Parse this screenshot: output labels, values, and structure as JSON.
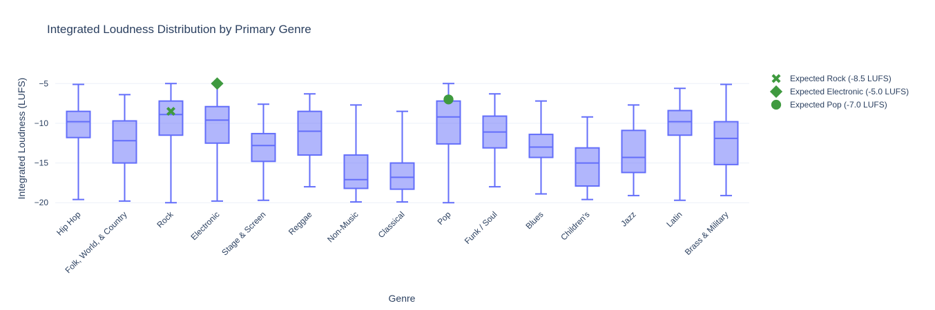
{
  "chart_data": {
    "type": "box",
    "title": "Integrated Loudness Distribution by Primary Genre",
    "xlabel": "Genre",
    "ylabel": "Integrated Loudness (LUFS)",
    "ylim": [
      -20.5,
      -3.5
    ],
    "yticks": [
      -5,
      -10,
      -15,
      -20
    ],
    "grid": true,
    "legend_position": "top-right",
    "box_color": "#636efa",
    "box_fill": "rgba(99,110,250,0.5)",
    "marker_color": "#3f9a3f",
    "categories": [
      "Hip Hop",
      "Folk, World, & Country",
      "Rock",
      "Electronic",
      "Stage & Screen",
      "Reggae",
      "Non-Music",
      "Classical",
      "Pop",
      "Funk / Soul",
      "Blues",
      "Children's",
      "Jazz",
      "Latin",
      "Brass & Military"
    ],
    "boxes": [
      {
        "min": -19.6,
        "q1": -11.8,
        "median": -9.8,
        "q3": -8.5,
        "max": -5.1
      },
      {
        "min": -19.8,
        "q1": -15.0,
        "median": -12.2,
        "q3": -9.7,
        "max": -6.4
      },
      {
        "min": -20.0,
        "q1": -11.5,
        "median": -8.9,
        "q3": -7.2,
        "max": -5.0
      },
      {
        "min": -19.8,
        "q1": -12.5,
        "median": -9.6,
        "q3": -7.9,
        "max": -5.0
      },
      {
        "min": -19.7,
        "q1": -14.8,
        "median": -12.8,
        "q3": -11.3,
        "max": -7.6
      },
      {
        "min": -18.0,
        "q1": -14.0,
        "median": -11.0,
        "q3": -8.5,
        "max": -6.3
      },
      {
        "min": -19.9,
        "q1": -18.2,
        "median": -17.1,
        "q3": -14.0,
        "max": -7.7
      },
      {
        "min": -19.9,
        "q1": -18.3,
        "median": -16.8,
        "q3": -15.0,
        "max": -8.5
      },
      {
        "min": -20.0,
        "q1": -12.6,
        "median": -9.2,
        "q3": -7.2,
        "max": -5.0
      },
      {
        "min": -18.0,
        "q1": -13.1,
        "median": -11.1,
        "q3": -9.1,
        "max": -6.3
      },
      {
        "min": -18.9,
        "q1": -14.3,
        "median": -13.0,
        "q3": -11.4,
        "max": -7.2
      },
      {
        "min": -19.6,
        "q1": -17.9,
        "median": -15.0,
        "q3": -13.1,
        "max": -9.2
      },
      {
        "min": -19.1,
        "q1": -16.2,
        "median": -14.3,
        "q3": -10.9,
        "max": -7.7
      },
      {
        "min": -19.7,
        "q1": -11.5,
        "median": -9.8,
        "q3": -8.4,
        "max": -5.6
      },
      {
        "min": -19.1,
        "q1": -15.2,
        "median": -11.9,
        "q3": -9.8,
        "max": -5.1
      }
    ],
    "expected": [
      {
        "name": "Expected Rock (-8.5 LUFS)",
        "category": "Rock",
        "value": -8.5,
        "symbol": "x"
      },
      {
        "name": "Expected Electronic (-5.0 LUFS)",
        "category": "Electronic",
        "value": -5.0,
        "symbol": "diamond"
      },
      {
        "name": "Expected Pop (-7.0 LUFS)",
        "category": "Pop",
        "value": -7.0,
        "symbol": "circle"
      }
    ]
  }
}
